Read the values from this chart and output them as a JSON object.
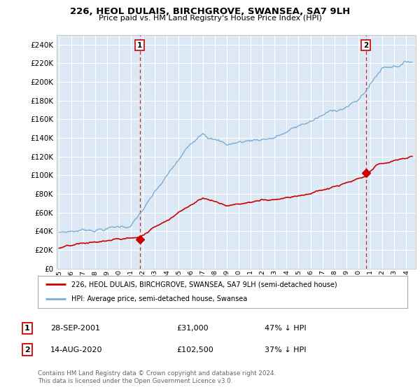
{
  "title": "226, HEOL DULAIS, BIRCHGROVE, SWANSEA, SA7 9LH",
  "subtitle": "Price paid vs. HM Land Registry's House Price Index (HPI)",
  "ylim": [
    0,
    250000
  ],
  "yticks": [
    0,
    20000,
    40000,
    60000,
    80000,
    100000,
    120000,
    140000,
    160000,
    180000,
    200000,
    220000,
    240000
  ],
  "hpi_color": "#7aadd4",
  "price_color": "#CC0000",
  "dashed_line_color": "#CC0000",
  "background_color": "#dce9f5",
  "grid_color": "#FFFFFF",
  "sale1_year": 2001.74,
  "sale1_price": 31000,
  "sale2_year": 2020.62,
  "sale2_price": 102500,
  "legend_line1": "226, HEOL DULAIS, BIRCHGROVE, SWANSEA, SA7 9LH (semi-detached house)",
  "legend_line2": "HPI: Average price, semi-detached house, Swansea",
  "table_data": [
    [
      "1",
      "28-SEP-2001",
      "£31,000",
      "47% ↓ HPI"
    ],
    [
      "2",
      "14-AUG-2020",
      "£102,500",
      "37% ↓ HPI"
    ]
  ],
  "footer": "Contains HM Land Registry data © Crown copyright and database right 2024.\nThis data is licensed under the Open Government Licence v3.0."
}
